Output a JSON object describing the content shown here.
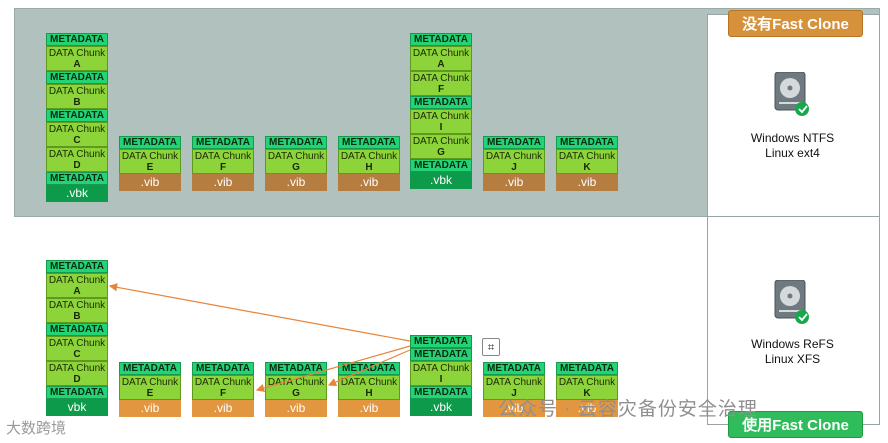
{
  "badges": {
    "top": "没有Fast Clone",
    "bottom": "使用Fast Clone"
  },
  "os_top": {
    "line1": "Windows NTFS",
    "line2": "Linux ext4"
  },
  "os_bottom": {
    "line1": "Windows  ReFS",
    "line2": "Linux  XFS"
  },
  "labels": {
    "metadata": "METADATA",
    "data_chunk": "DATA Chunk",
    "vbk": ".vbk",
    "vib": ".vib"
  },
  "top_vbk1": {
    "chunks": [
      "A",
      "B",
      "C",
      "D"
    ]
  },
  "top_vbk2": {
    "chunks": [
      "A",
      "F",
      "I",
      "G"
    ]
  },
  "top_vibs": [
    {
      "chunk": "E"
    },
    {
      "chunk": "F"
    },
    {
      "chunk": "G"
    },
    {
      "chunk": "H"
    },
    {
      "chunk": "J"
    },
    {
      "chunk": "K"
    }
  ],
  "bot_vbk1": {
    "chunks": [
      "A",
      "B",
      "C",
      "D"
    ],
    "footer": "vbk"
  },
  "bot_vbk2": {
    "chunks": [
      "I"
    ]
  },
  "bot_vibs": [
    {
      "chunk": "E"
    },
    {
      "chunk": "F"
    },
    {
      "chunk": "G"
    },
    {
      "chunk": "H"
    },
    {
      "chunk": "J"
    },
    {
      "chunk": "K"
    }
  ],
  "watermark_left": "大数跨境",
  "watermark_right": "公众号 · 云容灾备份安全治理",
  "overlay_icon": "⌗",
  "colors": {
    "metadata": "#23d476",
    "chunk": "#8dd43a",
    "vbk": "#0d9a4a",
    "vib_top": "#b57d40",
    "vib_bottom": "#e29640",
    "arrow": "#e8843a",
    "badge_no": "#d6913b",
    "badge_yes": "#2ebd5a"
  }
}
